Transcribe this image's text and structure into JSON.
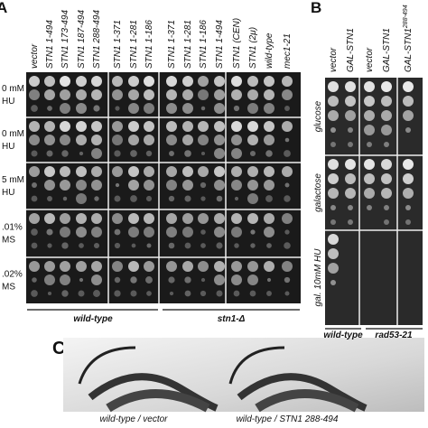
{
  "panel_a": {
    "label": "A",
    "columns": [
      "vector",
      "STN1 1-494",
      "STN1 173-494",
      "STN1 187-494",
      "STN1 288-494",
      "STN1 1-371",
      "STN1 1-281",
      "STN1 1-186",
      "STN1 1-371",
      "STN1 1-281",
      "STN1 1-186",
      "STN1 1-494",
      "STN1 (CEN)",
      "STN1 (2μ)",
      "wild-type",
      "mec1-21"
    ],
    "rows": [
      {
        "lines": [
          "0 mM",
          "HU"
        ]
      },
      {
        "lines": [
          "0 mM",
          "HU"
        ]
      },
      {
        "lines": [
          "5 mM",
          "HU"
        ]
      },
      {
        "lines": [
          ".01%",
          "MS"
        ]
      },
      {
        "lines": [
          ".02%",
          "MS"
        ]
      }
    ],
    "groups": [
      "wild-type",
      "stn1-Δ"
    ]
  },
  "panel_b": {
    "label": "B",
    "columns": [
      {
        "text": "vector"
      },
      {
        "text": "GAL-STN1"
      },
      {
        "text": "vector"
      },
      {
        "text": "GAL-STN1"
      },
      {
        "text": "GAL-STN1",
        "sup": "288-494"
      }
    ],
    "rows": [
      "glucose",
      "galactose",
      "gal. 10mM HU"
    ],
    "groups": [
      "wild-type",
      "rad53-21"
    ]
  },
  "panel_c": {
    "label": "C",
    "captions": [
      "wild-type / vector",
      "wild-type / STN1 288-494"
    ]
  }
}
